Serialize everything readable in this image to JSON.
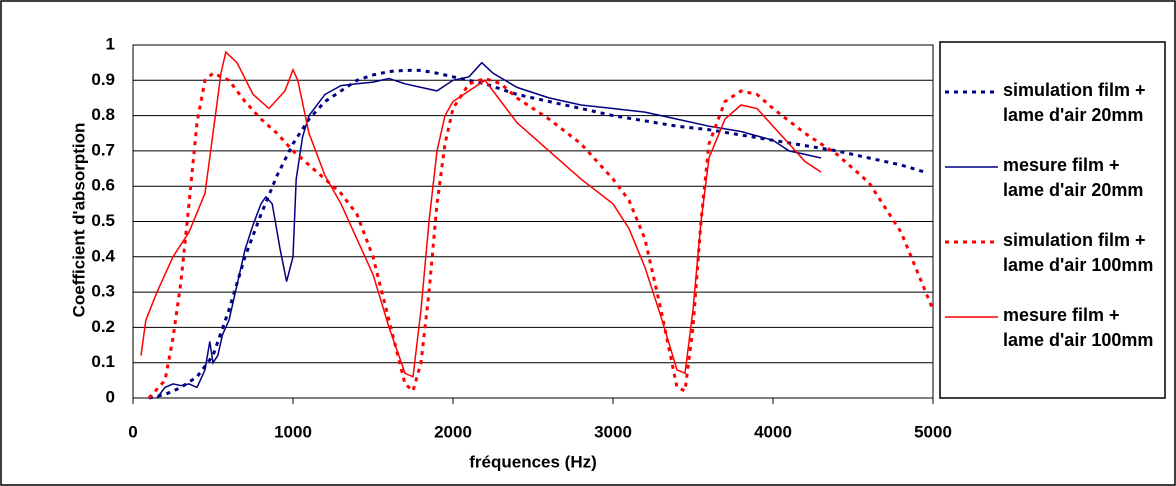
{
  "chart_data": {
    "type": "line",
    "xlabel": "fréquences (Hz)",
    "ylabel": "Coefficient d'absorption",
    "xlim": [
      0,
      5000
    ],
    "xticks": [
      0,
      1000,
      2000,
      3000,
      4000,
      5000
    ],
    "ylim": [
      0,
      1
    ],
    "yticks": [
      0,
      0.1,
      0.2,
      0.3,
      0.4,
      0.5,
      0.6,
      0.7,
      0.8,
      0.9,
      1
    ],
    "grid": true,
    "legend": "right",
    "series": [
      {
        "name": "simulation film + lame d'air 20mm",
        "color": "#000080",
        "dashed": true,
        "x": [
          100,
          200,
          300,
          400,
          500,
          600,
          700,
          800,
          900,
          1000,
          1100,
          1200,
          1300,
          1400,
          1500,
          1600,
          1700,
          1800,
          1900,
          2000,
          2200,
          2400,
          2600,
          2800,
          3000,
          3200,
          3400,
          3600,
          3800,
          4000,
          4200,
          4400,
          4600,
          4800,
          4950
        ],
        "values": [
          0,
          0.01,
          0.03,
          0.06,
          0.12,
          0.25,
          0.4,
          0.52,
          0.63,
          0.72,
          0.79,
          0.84,
          0.87,
          0.9,
          0.915,
          0.925,
          0.928,
          0.928,
          0.92,
          0.91,
          0.89,
          0.86,
          0.84,
          0.82,
          0.8,
          0.785,
          0.77,
          0.76,
          0.745,
          0.73,
          0.715,
          0.7,
          0.68,
          0.66,
          0.64
        ]
      },
      {
        "name": "mesure film + lame d'air 20mm",
        "color": "#000080",
        "dashed": false,
        "x": [
          150,
          200,
          250,
          300,
          350,
          400,
          450,
          480,
          500,
          530,
          560,
          600,
          650,
          700,
          750,
          800,
          830,
          870,
          920,
          960,
          1000,
          1020,
          1060,
          1100,
          1200,
          1300,
          1400,
          1500,
          1600,
          1700,
          1800,
          1900,
          2000,
          2100,
          2180,
          2250,
          2400,
          2600,
          2800,
          3000,
          3200,
          3400,
          3600,
          3800,
          4000,
          4100,
          4200,
          4300
        ],
        "values": [
          0,
          0.03,
          0.04,
          0.035,
          0.04,
          0.03,
          0.08,
          0.16,
          0.1,
          0.12,
          0.18,
          0.22,
          0.32,
          0.42,
          0.49,
          0.55,
          0.57,
          0.55,
          0.42,
          0.33,
          0.4,
          0.62,
          0.74,
          0.8,
          0.86,
          0.885,
          0.89,
          0.895,
          0.905,
          0.89,
          0.88,
          0.87,
          0.9,
          0.91,
          0.95,
          0.92,
          0.88,
          0.85,
          0.83,
          0.82,
          0.81,
          0.79,
          0.77,
          0.755,
          0.73,
          0.7,
          0.69,
          0.68
        ]
      },
      {
        "name": "simulation film + lame d'air 100mm",
        "color": "#ff0000",
        "dashed": true,
        "x": [
          100,
          200,
          250,
          300,
          350,
          400,
          450,
          500,
          600,
          700,
          800,
          900,
          1000,
          1100,
          1200,
          1300,
          1400,
          1500,
          1600,
          1700,
          1750,
          1800,
          1850,
          1900,
          1950,
          2000,
          2100,
          2200,
          2300,
          2400,
          2600,
          2800,
          3000,
          3100,
          3200,
          3300,
          3400,
          3450,
          3500,
          3550,
          3600,
          3700,
          3800,
          3900,
          4000,
          4200,
          4400,
          4600,
          4800,
          5000
        ],
        "values": [
          0,
          0.05,
          0.17,
          0.33,
          0.55,
          0.78,
          0.9,
          0.92,
          0.9,
          0.84,
          0.79,
          0.75,
          0.7,
          0.66,
          0.62,
          0.58,
          0.52,
          0.4,
          0.22,
          0.04,
          0.02,
          0.1,
          0.3,
          0.55,
          0.72,
          0.82,
          0.89,
          0.905,
          0.89,
          0.85,
          0.79,
          0.72,
          0.62,
          0.56,
          0.45,
          0.25,
          0.03,
          0.02,
          0.2,
          0.5,
          0.72,
          0.84,
          0.87,
          0.86,
          0.82,
          0.75,
          0.69,
          0.61,
          0.47,
          0.25
        ]
      },
      {
        "name": "mesure film + lame d'air 100mm",
        "color": "#ff0000",
        "dashed": false,
        "x": [
          50,
          80,
          150,
          250,
          350,
          450,
          500,
          550,
          580,
          650,
          750,
          850,
          950,
          1000,
          1030,
          1100,
          1200,
          1300,
          1400,
          1500,
          1600,
          1700,
          1750,
          1800,
          1850,
          1900,
          1950,
          2000,
          2100,
          2200,
          2300,
          2400,
          2600,
          2800,
          3000,
          3100,
          3200,
          3300,
          3400,
          3450,
          3500,
          3550,
          3600,
          3700,
          3800,
          3900,
          4000,
          4100,
          4200,
          4300
        ],
        "values": [
          0.12,
          0.22,
          0.3,
          0.4,
          0.47,
          0.58,
          0.75,
          0.92,
          0.98,
          0.95,
          0.86,
          0.82,
          0.87,
          0.93,
          0.9,
          0.75,
          0.63,
          0.55,
          0.45,
          0.35,
          0.2,
          0.07,
          0.06,
          0.25,
          0.5,
          0.7,
          0.8,
          0.84,
          0.87,
          0.9,
          0.84,
          0.78,
          0.7,
          0.62,
          0.55,
          0.48,
          0.37,
          0.23,
          0.08,
          0.07,
          0.25,
          0.5,
          0.68,
          0.79,
          0.83,
          0.82,
          0.77,
          0.72,
          0.67,
          0.64
        ]
      }
    ]
  }
}
